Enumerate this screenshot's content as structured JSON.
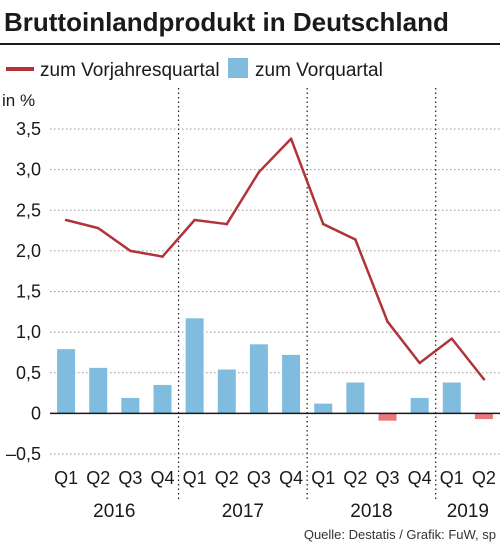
{
  "title": "Bruttoinlandprodukt in Deutschland",
  "legend": {
    "line_label": "zum Vorjahresquartal",
    "bar_label": "zum Vorquartal"
  },
  "unit_label": "in %",
  "source": "Quelle: Destatis / Grafik: FuW, sp",
  "colors": {
    "line": "#b0343a",
    "bar_positive": "#7fbcde",
    "bar_negative": "#e8797a",
    "grid": "#999999",
    "text": "#1a1a1a"
  },
  "chart_data": {
    "type": "bar",
    "categories": [
      "Q1",
      "Q2",
      "Q3",
      "Q4",
      "Q1",
      "Q2",
      "Q3",
      "Q4",
      "Q1",
      "Q2",
      "Q3",
      "Q4",
      "Q1",
      "Q2"
    ],
    "years": [
      "2016",
      "2017",
      "2018",
      "2019"
    ],
    "series": [
      {
        "name": "zum Vorjahresquartal",
        "kind": "line",
        "values": [
          2.38,
          2.28,
          2.0,
          1.93,
          2.38,
          2.33,
          2.97,
          3.38,
          2.33,
          2.14,
          1.13,
          0.62,
          0.92,
          0.42
        ]
      },
      {
        "name": "zum Vorquartal",
        "kind": "bar",
        "values": [
          0.79,
          0.56,
          0.19,
          0.35,
          1.17,
          0.54,
          0.85,
          0.72,
          0.12,
          0.38,
          -0.09,
          0.19,
          0.38,
          -0.07
        ]
      }
    ],
    "y_ticks": [
      "3,5",
      "3,0",
      "2,5",
      "2,0",
      "1,5",
      "1,0",
      "0,5",
      "0",
      "–0,5"
    ],
    "ylim": [
      -0.5,
      3.5
    ],
    "grid": true,
    "legend_position": "top"
  }
}
